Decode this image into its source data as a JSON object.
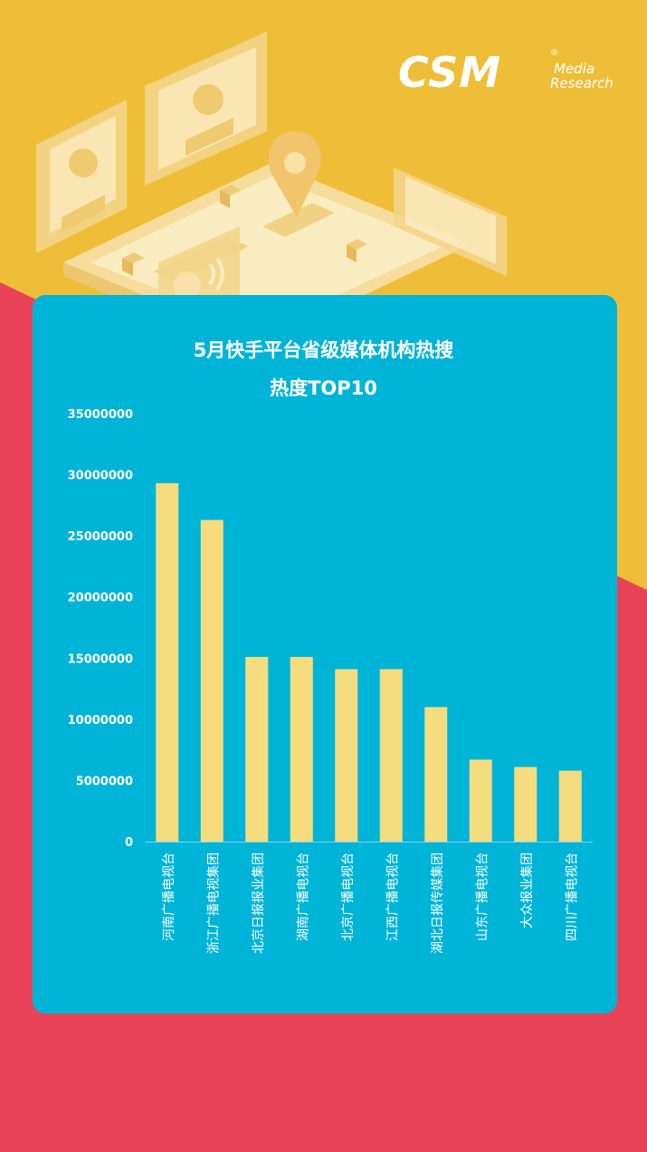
{
  "brand": {
    "logo_main": "CSM",
    "logo_reg": "®",
    "logo_sub1": "Media",
    "logo_sub2": "Research"
  },
  "colors": {
    "background_top": "#EFBE38",
    "background_bottom": "#E94357",
    "panel": "#00B4D8",
    "bar": "#F5DC7E",
    "text": "#ffffff"
  },
  "chart_data": {
    "type": "bar",
    "title": "5月快手平台省级媒体机构热搜",
    "subtitle": "热度TOP10",
    "categories": [
      "河南广播电视台",
      "浙江广播电视集团",
      "北京日报报业集团",
      "湖南广播电视台",
      "北京广播电视台",
      "江西广播电视台",
      "湖北日报传媒集团",
      "山东广播电视台",
      "大众报业集团",
      "四川广播电视台"
    ],
    "values": [
      29300000,
      26300000,
      15100000,
      15100000,
      14100000,
      14100000,
      11000000,
      6700000,
      6100000,
      5800000
    ],
    "ylim": [
      0,
      35000000
    ],
    "yticks": [
      0,
      5000000,
      10000000,
      15000000,
      20000000,
      25000000,
      30000000,
      35000000
    ],
    "ytick_labels": [
      "0",
      "5000000",
      "10000000",
      "15000000",
      "20000000",
      "25000000",
      "30000000",
      "35000000"
    ],
    "grid": false,
    "legend": "none",
    "xlabel": "",
    "ylabel": ""
  }
}
